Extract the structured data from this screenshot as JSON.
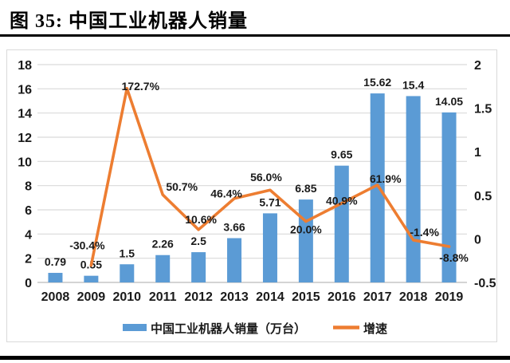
{
  "figure": {
    "title": "图 35: 中国工业机器人销量"
  },
  "chart_data": {
    "type": "bar",
    "subtype": "bar-line-combo",
    "categories": [
      "2008",
      "2009",
      "2010",
      "2011",
      "2012",
      "2013",
      "2014",
      "2015",
      "2016",
      "2017",
      "2018",
      "2019"
    ],
    "series": [
      {
        "name": "中国工业机器人销量（万台）",
        "type": "bar",
        "axis": "left",
        "values": [
          0.79,
          0.55,
          1.5,
          2.26,
          2.5,
          3.66,
          5.71,
          6.85,
          9.65,
          15.62,
          15.4,
          14.05
        ],
        "labels": [
          "0.79",
          "0.55",
          "1.5",
          "2.26",
          "2.5",
          "3.66",
          "5.71",
          "6.85",
          "9.65",
          "15.62",
          "15.4",
          "14.05"
        ]
      },
      {
        "name": "增速",
        "type": "line",
        "axis": "right",
        "values": [
          null,
          -0.304,
          1.727,
          0.507,
          0.106,
          0.464,
          0.56,
          0.2,
          0.409,
          0.619,
          -0.014,
          -0.088
        ],
        "labels": [
          "",
          "-30.4%",
          "172.7%",
          "50.7%",
          "10.6%",
          "46.4%",
          "56.0%",
          "20.0%",
          "40.9%",
          "61.9%",
          "-1.4%",
          "-8.8%"
        ]
      }
    ],
    "left_axis": {
      "min": 0,
      "max": 18,
      "ticks": [
        0,
        2,
        4,
        6,
        8,
        10,
        12,
        14,
        16,
        18
      ],
      "tick_labels": [
        "0",
        "2",
        "4",
        "6",
        "8",
        "10",
        "12",
        "14",
        "16",
        "18"
      ]
    },
    "right_axis": {
      "min": -0.5,
      "max": 2,
      "ticks": [
        -0.5,
        0,
        0.5,
        1,
        1.5,
        2
      ],
      "tick_labels": [
        "-0.5",
        "0",
        "0.5",
        "1",
        "1.5",
        "2"
      ]
    },
    "legend": [
      "中国工业机器人销量（万台）",
      "增速"
    ],
    "legend_position": "bottom",
    "grid": true,
    "title": "中国工业机器人销量"
  },
  "colors": {
    "bar": "#5B9BD5",
    "line": "#ED7D31",
    "grid": "#D9D9D9",
    "axis_line": "#C6C6C6",
    "text": "#1a1a1a",
    "chart_border": "#D9D9D9",
    "rule": "#000000"
  }
}
